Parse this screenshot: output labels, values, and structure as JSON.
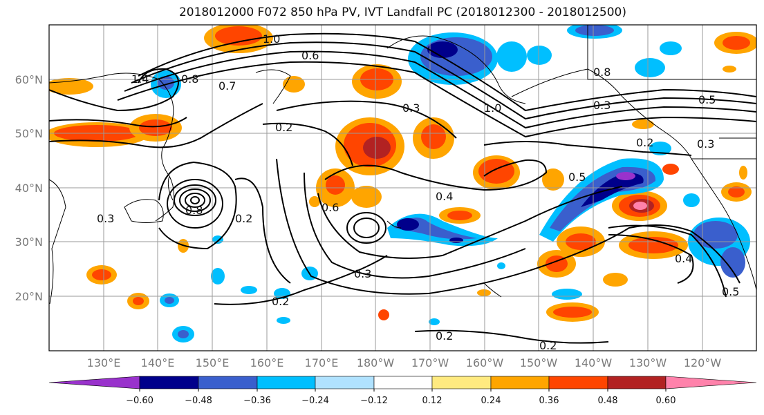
{
  "title": "2018012000 F072 850 hPa PV, IVT Landfall PC (2018012300 - 2018012500)",
  "lat_labels": [
    "60°N",
    "50°N",
    "40°N",
    "30°N",
    "20°N"
  ],
  "lon_labels": [
    "130°E",
    "140°E",
    "150°E",
    "160°E",
    "170°E",
    "180°W",
    "170°W",
    "160°W",
    "150°W",
    "140°W",
    "130°W",
    "120°W"
  ],
  "colorbar": {
    "ticks": [
      "−0.60",
      "−0.48",
      "−0.36",
      "−0.24",
      "−0.12",
      "0.12",
      "0.24",
      "0.36",
      "0.48",
      "0.60"
    ],
    "colors": [
      "#9932cc",
      "#00008b",
      "#3a5fcd",
      "#00bfff",
      "#b0e2ff",
      "#ffffff",
      "#ffea80",
      "#ffa500",
      "#ff4500",
      "#b22222",
      "#ff82ab"
    ]
  },
  "contour_labels": [
    "1.0",
    "0.6",
    "1.4",
    "0.8",
    "0.7",
    "0.2",
    "0.3",
    "1.0",
    "0.8",
    "0.3",
    "0.5",
    "0.2",
    "0.3",
    "0.5",
    "0.4",
    "0.6",
    "0.8",
    "0.2",
    "0.3",
    "0.3",
    "0.2",
    "0.2",
    "0.4",
    "0.5",
    "0.2"
  ]
}
